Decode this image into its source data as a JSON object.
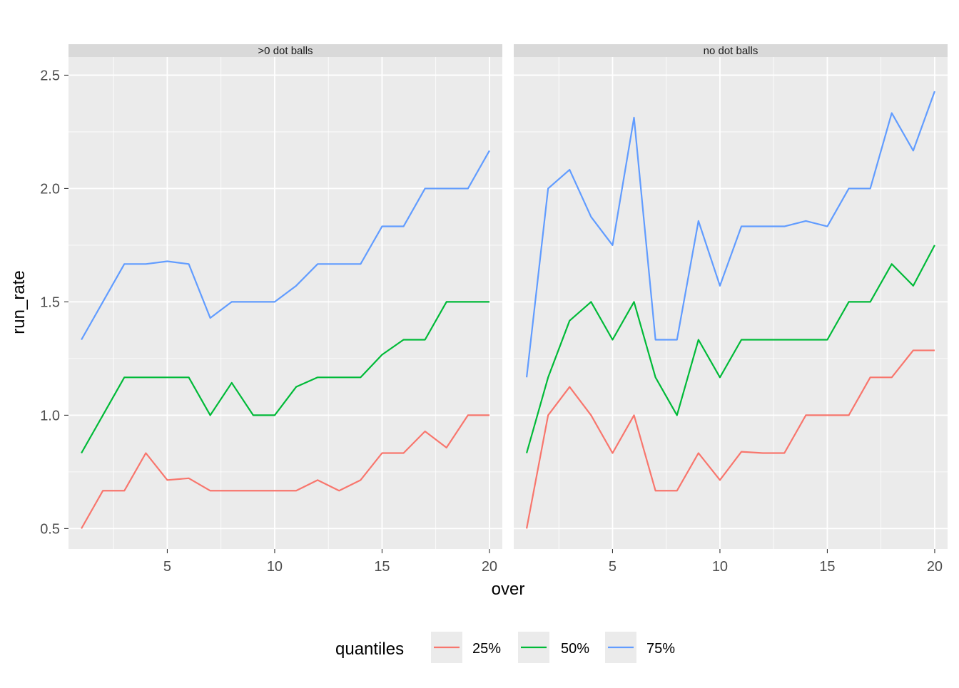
{
  "chart_data": {
    "type": "line",
    "xlabel": "over",
    "ylabel": "run_rate",
    "xlim": [
      0.4,
      20.6
    ],
    "ylim": [
      0.41,
      2.58
    ],
    "x_ticks": [
      5,
      10,
      15,
      20
    ],
    "y_ticks": [
      0.5,
      1.0,
      1.5,
      2.0,
      2.5
    ],
    "y_tick_labels": [
      "0.5",
      "1.0",
      "1.5",
      "2.0",
      "2.5"
    ],
    "grid": true,
    "legend": {
      "title": "quantiles",
      "position": "bottom",
      "entries": [
        "25%",
        "50%",
        "75%"
      ]
    },
    "colors": {
      "25%": "#F8766D",
      "50%": "#00BA38",
      "75%": "#619CFF"
    },
    "panels": [
      {
        "label": ">0 dot balls",
        "series": [
          {
            "name": "25%",
            "x": [
              1,
              2,
              3,
              4,
              5,
              6,
              7,
              8,
              9,
              10,
              11,
              12,
              13,
              14,
              15,
              16,
              17,
              18,
              19,
              20
            ],
            "values": [
              0.5,
              0.667,
              0.667,
              0.833,
              0.714,
              0.722,
              0.667,
              0.667,
              0.667,
              0.667,
              0.667,
              0.714,
              0.667,
              0.714,
              0.833,
              0.833,
              0.929,
              0.857,
              1.0,
              1.0
            ]
          },
          {
            "name": "50%",
            "x": [
              1,
              2,
              3,
              4,
              5,
              6,
              7,
              8,
              9,
              10,
              11,
              12,
              13,
              14,
              15,
              16,
              17,
              18,
              19,
              20
            ],
            "values": [
              0.833,
              1.0,
              1.167,
              1.167,
              1.167,
              1.167,
              1.0,
              1.143,
              1.0,
              1.0,
              1.125,
              1.167,
              1.167,
              1.167,
              1.267,
              1.333,
              1.333,
              1.5,
              1.5,
              1.5
            ]
          },
          {
            "name": "75%",
            "x": [
              1,
              2,
              3,
              4,
              5,
              6,
              7,
              8,
              9,
              10,
              11,
              12,
              13,
              14,
              15,
              16,
              17,
              18,
              19,
              20
            ],
            "values": [
              1.333,
              1.5,
              1.667,
              1.667,
              1.679,
              1.667,
              1.429,
              1.5,
              1.5,
              1.5,
              1.571,
              1.667,
              1.667,
              1.667,
              1.833,
              1.833,
              2.0,
              2.0,
              2.0,
              2.167
            ]
          }
        ]
      },
      {
        "label": "no dot balls",
        "series": [
          {
            "name": "25%",
            "x": [
              1,
              2,
              3,
              4,
              5,
              6,
              7,
              8,
              9,
              10,
              11,
              12,
              13,
              14,
              15,
              16,
              17,
              18,
              19,
              20
            ],
            "values": [
              0.5,
              1.0,
              1.125,
              1.0,
              0.833,
              1.0,
              0.667,
              0.667,
              0.833,
              0.714,
              0.839,
              0.833,
              0.833,
              1.0,
              1.0,
              1.0,
              1.167,
              1.167,
              1.286,
              1.286
            ]
          },
          {
            "name": "50%",
            "x": [
              1,
              2,
              3,
              4,
              5,
              6,
              7,
              8,
              9,
              10,
              11,
              12,
              13,
              14,
              15,
              16,
              17,
              18,
              19,
              20
            ],
            "values": [
              0.833,
              1.167,
              1.417,
              1.5,
              1.333,
              1.5,
              1.167,
              1.0,
              1.333,
              1.167,
              1.333,
              1.333,
              1.333,
              1.333,
              1.333,
              1.5,
              1.5,
              1.667,
              1.571,
              1.75
            ]
          },
          {
            "name": "75%",
            "x": [
              1,
              2,
              3,
              4,
              5,
              6,
              7,
              8,
              9,
              10,
              11,
              12,
              13,
              14,
              15,
              16,
              17,
              18,
              19,
              20
            ],
            "values": [
              1.167,
              2.0,
              2.083,
              1.875,
              1.75,
              2.313,
              1.333,
              1.333,
              1.857,
              1.571,
              1.833,
              1.833,
              1.833,
              1.857,
              1.833,
              2.0,
              2.0,
              2.333,
              2.167,
              2.429
            ]
          }
        ]
      }
    ]
  }
}
